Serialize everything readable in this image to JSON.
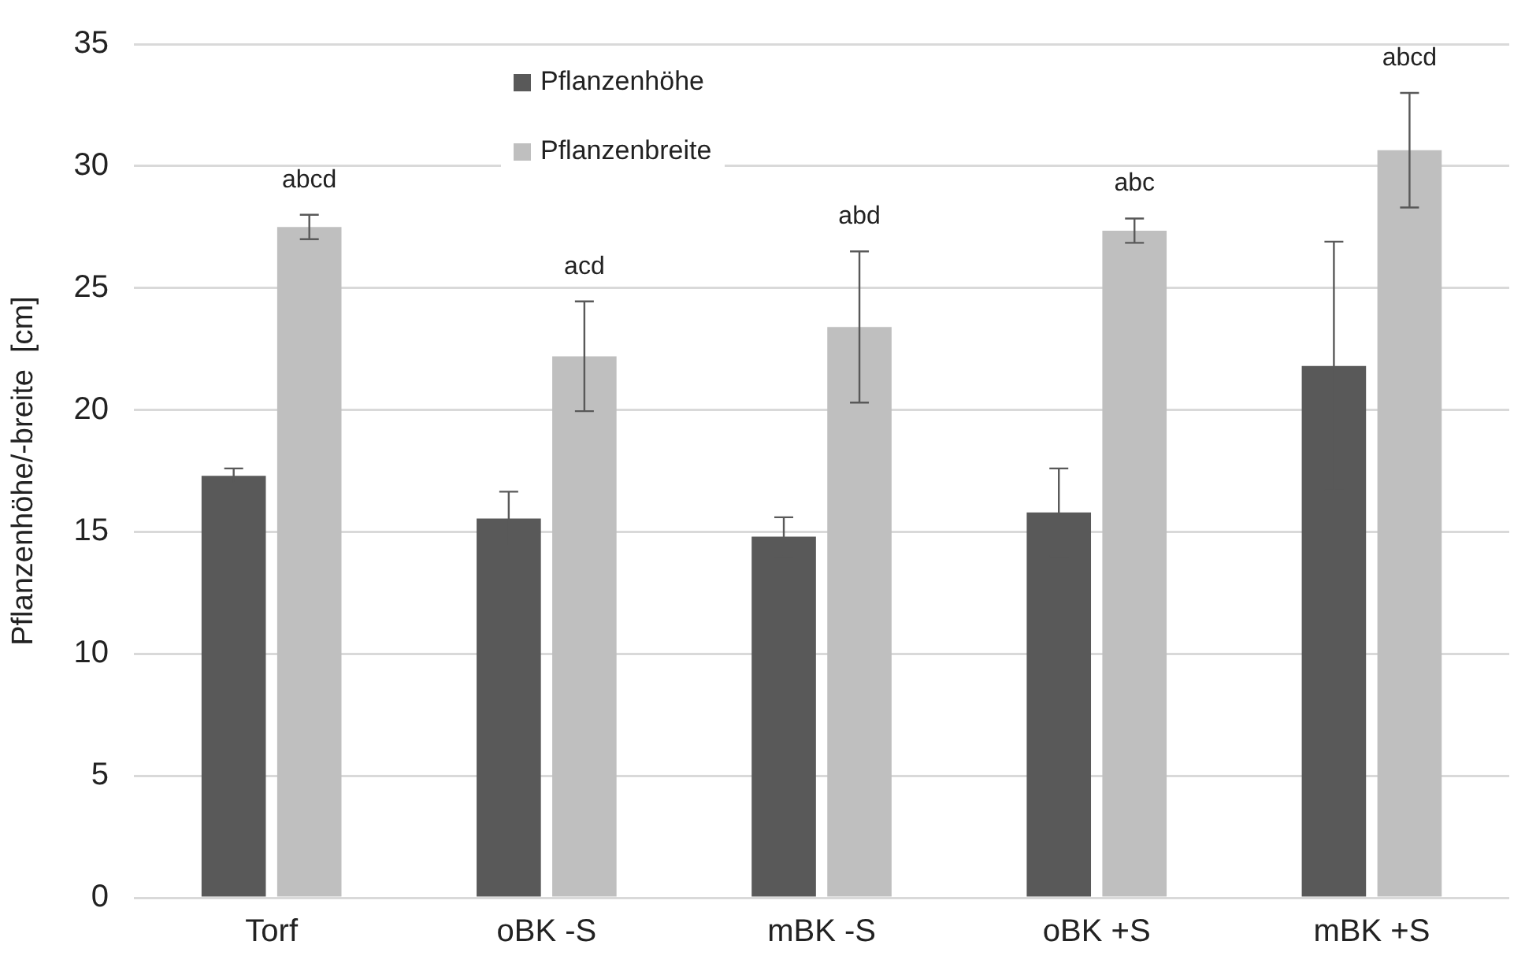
{
  "chart_data": {
    "type": "bar",
    "ylabel": "Pflanzenhöhe/-breite  [cm]",
    "categories": [
      "Torf",
      "oBK -S",
      "mBK -S",
      "oBK +S",
      "mBK +S"
    ],
    "series": [
      {
        "name": "Pflanzenhöhe",
        "color": "#595959",
        "values": [
          17.3,
          15.55,
          14.8,
          15.8,
          21.8
        ],
        "errors": [
          0.3,
          1.1,
          0.8,
          1.8,
          5.1
        ]
      },
      {
        "name": "Pflanzenbreite",
        "color": "#bfbfbf",
        "values": [
          27.5,
          22.2,
          23.4,
          27.35,
          30.65
        ],
        "errors": [
          0.5,
          2.25,
          3.1,
          0.5,
          2.35
        ]
      }
    ],
    "ylim": [
      0,
      35
    ],
    "yticks": [
      0,
      5,
      10,
      15,
      20,
      25,
      30,
      35
    ],
    "grid": "y",
    "legend": "top",
    "annotations": [
      "abcd",
      "acd",
      "abd",
      "abc",
      "abcd"
    ]
  }
}
